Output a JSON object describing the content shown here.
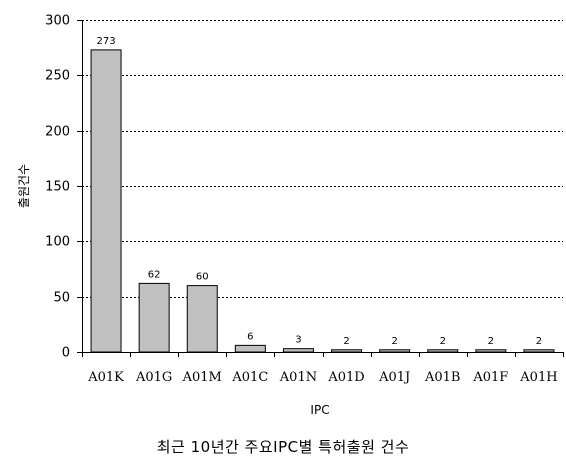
{
  "chart_data": {
    "type": "bar",
    "title": "최근 10년간 주요IPC별 특허출원 건수",
    "xlabel": "IPC",
    "ylabel": "출원건수",
    "categories": [
      "A01K",
      "A01G",
      "A01M",
      "A01C",
      "A01N",
      "A01D",
      "A01J",
      "A01B",
      "A01F",
      "A01H"
    ],
    "values": [
      273,
      62,
      60,
      6,
      3,
      2,
      2,
      2,
      2,
      2
    ],
    "ylim": [
      0,
      300
    ],
    "yticks": [
      0,
      50,
      100,
      150,
      200,
      250,
      300
    ],
    "grid": true,
    "legend": "none",
    "colors": {
      "bar": "#c0c0c0",
      "bar_stroke": "#000000",
      "grid": "#000000"
    }
  }
}
